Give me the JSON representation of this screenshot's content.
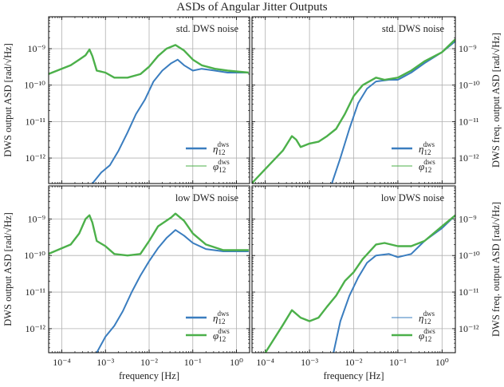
{
  "title": "ASDs of Angular Jitter Outputs",
  "colors": {
    "blue": "#3a7dbf",
    "green": "#4cb04a",
    "grid": "#b0b0b0"
  },
  "chart_data": [
    {
      "type": "line",
      "panel": "top-left",
      "annotation": "std. DWS noise",
      "ylabel": "DWS output ASD [rad/√Hz]",
      "xlabel": "",
      "xscale": "log",
      "yscale": "log",
      "xlim": [
        5e-05,
        2
      ],
      "ylim": [
        7.5e-09,
        2e-13
      ],
      "xticks": [],
      "yticks": [
        "10⁻⁹",
        "10⁻¹⁰",
        "10⁻¹¹",
        "10⁻¹²"
      ],
      "grid": true,
      "legend": "bottom-right",
      "series": [
        {
          "name": "η₁₂ dws",
          "sym": "η",
          "sub": "12",
          "sup": "dws",
          "color": "#3a7dbf",
          "points": [
            [
              0.0005,
              2e-13
            ],
            [
              0.0008,
              4e-13
            ],
            [
              0.00126,
              6.3e-13
            ],
            [
              0.002,
              1.6e-12
            ],
            [
              0.0032,
              5e-12
            ],
            [
              0.005,
              1.6e-11
            ],
            [
              0.008,
              4e-11
            ],
            [
              0.0126,
              1.26e-10
            ],
            [
              0.02,
              2.5e-10
            ],
            [
              0.032,
              4e-10
            ],
            [
              0.045,
              5e-10
            ],
            [
              0.063,
              3.5e-10
            ],
            [
              0.1,
              2.5e-10
            ],
            [
              0.16,
              2.8e-10
            ],
            [
              0.32,
              2.5e-10
            ],
            [
              0.63,
              2.2e-10
            ],
            [
              1.9,
              2.2e-10
            ]
          ]
        },
        {
          "name": "φ₁₂ dws",
          "sym": "φ",
          "sub": "12",
          "sup": "dws",
          "color": "#4cb04a",
          "points": [
            [
              4.9e-05,
              2e-10
            ],
            [
              0.00016,
              3.5e-10
            ],
            [
              0.00025,
              5e-10
            ],
            [
              0.00035,
              6.6e-10
            ],
            [
              0.00043,
              9.5e-10
            ],
            [
              0.0005,
              6.3e-10
            ],
            [
              0.00063,
              2.5e-10
            ],
            [
              0.001,
              2.2e-10
            ],
            [
              0.0016,
              1.6e-10
            ],
            [
              0.0032,
              1.6e-10
            ],
            [
              0.0063,
              2e-10
            ],
            [
              0.01,
              3.2e-10
            ],
            [
              0.016,
              6.3e-10
            ],
            [
              0.025,
              1e-09
            ],
            [
              0.04,
              1.26e-09
            ],
            [
              0.063,
              8.9e-10
            ],
            [
              0.1,
              5e-10
            ],
            [
              0.16,
              3.5e-10
            ],
            [
              0.32,
              2.8e-10
            ],
            [
              0.63,
              2.5e-10
            ],
            [
              1.9,
              2.2e-10
            ]
          ]
        }
      ]
    },
    {
      "type": "line",
      "panel": "top-right",
      "annotation": "std. DWS noise",
      "ylabel": "DWS freq. output ASD [rad/√Hz]",
      "xlabel": "",
      "xscale": "log",
      "yscale": "log",
      "xlim": [
        5e-05,
        2
      ],
      "ylim": [
        7.5e-09,
        2e-13
      ],
      "xticks": [],
      "yticks": [
        "10⁻⁹",
        "10⁻¹⁰",
        "10⁻¹¹",
        "10⁻¹²"
      ],
      "grid": true,
      "legend": "bottom-right",
      "series": [
        {
          "name": "η̇₁₂ dws",
          "sym": "η̇",
          "sub": "12",
          "sup": "dws",
          "color": "#3a7dbf",
          "points": [
            [
              0.0032,
              2e-13
            ],
            [
              0.005,
              1e-12
            ],
            [
              0.008,
              6.3e-12
            ],
            [
              0.0126,
              3.2e-11
            ],
            [
              0.02,
              8e-11
            ],
            [
              0.032,
              1.26e-10
            ],
            [
              0.063,
              1.4e-10
            ],
            [
              0.1,
              1.4e-10
            ],
            [
              0.2,
              2.2e-10
            ],
            [
              0.4,
              4e-10
            ],
            [
              1,
              8e-10
            ],
            [
              2,
              1.6e-09
            ]
          ]
        },
        {
          "name": "φ̇₁₂ dws",
          "sym": "φ̇",
          "sub": "12",
          "sup": "dws",
          "color": "#4cb04a",
          "points": [
            [
              4.9e-05,
              2e-13
            ],
            [
              0.0001,
              5e-13
            ],
            [
              0.00025,
              1.6e-12
            ],
            [
              0.0004,
              4e-12
            ],
            [
              0.0005,
              3.2e-12
            ],
            [
              0.00063,
              2e-12
            ],
            [
              0.001,
              2.5e-12
            ],
            [
              0.0016,
              2.8e-12
            ],
            [
              0.0025,
              4e-12
            ],
            [
              0.004,
              6.3e-12
            ],
            [
              0.0063,
              1.6e-11
            ],
            [
              0.01,
              5e-11
            ],
            [
              0.016,
              1e-10
            ],
            [
              0.032,
              1.6e-10
            ],
            [
              0.05,
              1.4e-10
            ],
            [
              0.1,
              1.6e-10
            ],
            [
              0.2,
              2.5e-10
            ],
            [
              0.4,
              4.5e-10
            ],
            [
              1,
              8e-10
            ],
            [
              2,
              1.8e-09
            ]
          ]
        }
      ]
    },
    {
      "type": "line",
      "panel": "bottom-left",
      "annotation": "low DWS noise",
      "ylabel": "DWS output ASD [rad/√Hz]",
      "xlabel": "frequency [Hz]",
      "xscale": "log",
      "yscale": "log",
      "xlim": [
        5e-05,
        2
      ],
      "ylim": [
        8e-09,
        2.2e-13
      ],
      "xticks": [
        "10⁻⁴",
        "10⁻³",
        "10⁻²",
        "10⁻¹",
        "10⁰"
      ],
      "yticks": [
        "10⁻⁹",
        "10⁻¹⁰",
        "10⁻¹¹",
        "10⁻¹²"
      ],
      "grid": true,
      "legend": "bottom-right",
      "series": [
        {
          "name": "η₁₂ dws",
          "sym": "η",
          "sub": "12",
          "sup": "dws",
          "color": "#3a7dbf",
          "points": [
            [
              0.00063,
              2.2e-13
            ],
            [
              0.001,
              6e-13
            ],
            [
              0.0016,
              1.2e-12
            ],
            [
              0.0025,
              3e-12
            ],
            [
              0.004,
              1e-11
            ],
            [
              0.0063,
              2.8e-11
            ],
            [
              0.01,
              7e-11
            ],
            [
              0.016,
              1.6e-10
            ],
            [
              0.025,
              3e-10
            ],
            [
              0.04,
              5e-10
            ],
            [
              0.063,
              3.5e-10
            ],
            [
              0.1,
              2.2e-10
            ],
            [
              0.2,
              1.5e-10
            ],
            [
              0.5,
              1.3e-10
            ],
            [
              1.9,
              1.3e-10
            ]
          ]
        },
        {
          "name": "φ₁₂ dws",
          "sym": "φ",
          "sub": "12",
          "sup": "dws",
          "color": "#4cb04a",
          "points": [
            [
              4.9e-05,
              1.1e-10
            ],
            [
              0.00016,
              2e-10
            ],
            [
              0.00025,
              4e-10
            ],
            [
              0.00035,
              1e-09
            ],
            [
              0.00043,
              1.26e-09
            ],
            [
              0.0005,
              8e-10
            ],
            [
              0.00063,
              2.5e-10
            ],
            [
              0.001,
              1.8e-10
            ],
            [
              0.0016,
              1.1e-10
            ],
            [
              0.0032,
              1e-10
            ],
            [
              0.0063,
              1.1e-10
            ],
            [
              0.01,
              2.5e-10
            ],
            [
              0.016,
              6.3e-10
            ],
            [
              0.032,
              1.1e-09
            ],
            [
              0.04,
              1.4e-09
            ],
            [
              0.063,
              8.9e-10
            ],
            [
              0.1,
              4e-10
            ],
            [
              0.2,
              2e-10
            ],
            [
              0.5,
              1.4e-10
            ],
            [
              1.9,
              1.4e-10
            ]
          ]
        }
      ]
    },
    {
      "type": "line",
      "panel": "bottom-right",
      "annotation": "low DWS noise",
      "ylabel": "DWS freq. output ASD [rad/√Hz]",
      "xlabel": "frequency [Hz]",
      "xscale": "log",
      "yscale": "log",
      "xlim": [
        5e-05,
        2
      ],
      "ylim": [
        8e-09,
        2.2e-13
      ],
      "xticks": [
        "10⁻⁴",
        "10⁻³",
        "10⁻²",
        "10⁻¹",
        "10⁰"
      ],
      "yticks": [
        "10⁻⁹",
        "10⁻¹⁰",
        "10⁻¹¹",
        "10⁻¹²"
      ],
      "grid": true,
      "legend": "bottom-right",
      "series": [
        {
          "name": "η̇₁₂ dws",
          "sym": "η̇",
          "sub": "12",
          "sup": "dws",
          "color": "#3a7dbf",
          "points": [
            [
              0.0035,
              2.2e-13
            ],
            [
              0.005,
              1.6e-12
            ],
            [
              0.008,
              7.9e-12
            ],
            [
              0.0126,
              2.5e-11
            ],
            [
              0.02,
              6.3e-11
            ],
            [
              0.032,
              1e-10
            ],
            [
              0.063,
              1.1e-10
            ],
            [
              0.1,
              9e-11
            ],
            [
              0.2,
              1.1e-10
            ],
            [
              0.4,
              2.5e-10
            ],
            [
              1,
              5.6e-10
            ],
            [
              2,
              1.26e-09
            ]
          ]
        },
        {
          "name": "φ̇₁₂ dws",
          "sym": "φ̇",
          "sub": "12",
          "sup": "dws",
          "color": "#4cb04a",
          "points": [
            [
              0.0001,
              2.2e-13
            ],
            [
              0.00025,
              1.26e-12
            ],
            [
              0.0004,
              3.2e-12
            ],
            [
              0.00063,
              2e-12
            ],
            [
              0.001,
              1.6e-12
            ],
            [
              0.0016,
              2e-12
            ],
            [
              0.0025,
              4e-12
            ],
            [
              0.004,
              8e-12
            ],
            [
              0.0063,
              2e-11
            ],
            [
              0.01,
              3.5e-11
            ],
            [
              0.016,
              8e-11
            ],
            [
              0.032,
              2e-10
            ],
            [
              0.05,
              2.2e-10
            ],
            [
              0.1,
              1.8e-10
            ],
            [
              0.2,
              1.8e-10
            ],
            [
              0.4,
              2.5e-10
            ],
            [
              1,
              6.3e-10
            ],
            [
              2,
              1.26e-09
            ]
          ]
        }
      ]
    }
  ]
}
